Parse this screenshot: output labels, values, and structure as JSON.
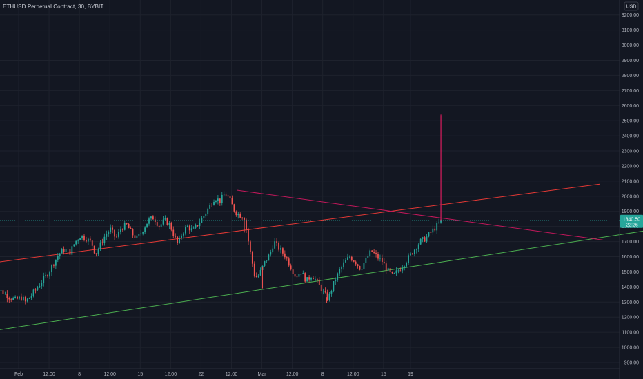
{
  "header": {
    "title": "ETHUSD Perpetual Contract, 30, BYBIT"
  },
  "price_scale": {
    "currency": "USD"
  },
  "last_price": {
    "value": "1840.50",
    "countdown": "22:26",
    "numeric": 1840.5
  },
  "colors": {
    "background": "#131722",
    "grid": "#1e222d",
    "up": "#26a69a",
    "down": "#ef5350",
    "trend_red": "#e53935",
    "trend_green": "#4caf50",
    "trend_pink": "#c2185b",
    "spike": "#e91e63"
  },
  "chart_data": {
    "type": "candlestick",
    "symbol": "ETHUSD Perpetual Contract",
    "interval": "30",
    "exchange": "BYBIT",
    "y_ticks": [
      900,
      1000,
      1100,
      1200,
      1300,
      1400,
      1500,
      1600,
      1700,
      1800,
      1900,
      2000,
      2100,
      2200,
      2300,
      2400,
      2500,
      2600,
      2700,
      2800,
      2900,
      3000,
      3100,
      3200
    ],
    "y_tick_labels": [
      "900.00",
      "1000.00",
      "1100.00",
      "1200.00",
      "1300.00",
      "1400.00",
      "1500.00",
      "1600.00",
      "1700.00",
      "1800.00",
      "1900.00",
      "2000.00",
      "2100.00",
      "2200.00",
      "2300.00",
      "2400.00",
      "2500.00",
      "2600.00",
      "2700.00",
      "2800.00",
      "2900.00",
      "3000.00",
      "3100.00",
      "3200.00"
    ],
    "ylim": [
      850,
      3260
    ],
    "x_tick_labels": [
      "Feb",
      "12:00",
      "8",
      "12:00",
      "15",
      "12:00",
      "22",
      "12:00",
      "Mar",
      "12:00",
      "8",
      "12:00",
      "15",
      "19"
    ],
    "x_tick_days": [
      1.0,
      5.5,
      10.0,
      14.5,
      19.0,
      23.5,
      28.0,
      32.5,
      37.0,
      41.5,
      46.0,
      50.5,
      55.0,
      59.0
    ],
    "xlim": [
      -2.8,
      90.0
    ],
    "price_path": [
      [
        -2.8,
        1390
      ],
      [
        -1.5,
        1370
      ],
      [
        -0.5,
        1335
      ],
      [
        0.5,
        1315
      ],
      [
        1.5,
        1330
      ],
      [
        2.0,
        1300
      ],
      [
        2.8,
        1340
      ],
      [
        3.5,
        1380
      ],
      [
        4.5,
        1440
      ],
      [
        5.5,
        1500
      ],
      [
        6.2,
        1560
      ],
      [
        7.0,
        1620
      ],
      [
        7.8,
        1650
      ],
      [
        8.6,
        1630
      ],
      [
        9.4,
        1700
      ],
      [
        10.2,
        1740
      ],
      [
        11.0,
        1720
      ],
      [
        11.8,
        1690
      ],
      [
        12.4,
        1615
      ],
      [
        13.0,
        1670
      ],
      [
        13.8,
        1740
      ],
      [
        14.6,
        1780
      ],
      [
        15.4,
        1720
      ],
      [
        16.2,
        1790
      ],
      [
        17.0,
        1810
      ],
      [
        17.8,
        1750
      ],
      [
        18.6,
        1720
      ],
      [
        19.4,
        1780
      ],
      [
        20.2,
        1840
      ],
      [
        21.0,
        1860
      ],
      [
        21.8,
        1800
      ],
      [
        22.6,
        1840
      ],
      [
        23.4,
        1810
      ],
      [
        24.0,
        1740
      ],
      [
        24.6,
        1680
      ],
      [
        25.2,
        1760
      ],
      [
        26.0,
        1800
      ],
      [
        26.8,
        1770
      ],
      [
        27.6,
        1820
      ],
      [
        28.4,
        1870
      ],
      [
        29.2,
        1930
      ],
      [
        30.0,
        1990
      ],
      [
        30.8,
        1970
      ],
      [
        31.6,
        2020
      ],
      [
        32.2,
        1980
      ],
      [
        33.0,
        1900
      ],
      [
        33.6,
        1880
      ],
      [
        34.4,
        1860
      ],
      [
        35.2,
        1650
      ],
      [
        36.0,
        1460
      ],
      [
        36.6,
        1480
      ],
      [
        37.4,
        1560
      ],
      [
        38.2,
        1620
      ],
      [
        38.8,
        1700
      ],
      [
        39.6,
        1650
      ],
      [
        40.4,
        1610
      ],
      [
        41.2,
        1540
      ],
      [
        42.0,
        1470
      ],
      [
        42.8,
        1500
      ],
      [
        43.6,
        1440
      ],
      [
        44.4,
        1480
      ],
      [
        45.2,
        1430
      ],
      [
        46.0,
        1370
      ],
      [
        46.8,
        1320
      ],
      [
        47.6,
        1420
      ],
      [
        48.4,
        1500
      ],
      [
        49.2,
        1560
      ],
      [
        50.0,
        1600
      ],
      [
        50.8,
        1570
      ],
      [
        51.6,
        1520
      ],
      [
        52.4,
        1580
      ],
      [
        53.2,
        1640
      ],
      [
        54.0,
        1600
      ],
      [
        54.8,
        1570
      ],
      [
        55.6,
        1510
      ],
      [
        56.4,
        1470
      ],
      [
        57.2,
        1510
      ],
      [
        58.0,
        1550
      ],
      [
        58.8,
        1600
      ],
      [
        59.6,
        1650
      ],
      [
        60.4,
        1700
      ],
      [
        61.2,
        1720
      ],
      [
        62.0,
        1760
      ],
      [
        62.8,
        1800
      ],
      [
        63.6,
        1840
      ]
    ],
    "wick_spikes": [
      {
        "day": 37.1,
        "low": 1390
      },
      {
        "day": 34.4,
        "low": 1760
      },
      {
        "day": 46.6,
        "low": 1295
      },
      {
        "day": 63.5,
        "high": 2530
      }
    ],
    "trendlines": [
      {
        "color": "trend_red",
        "from": [
          -2.8,
          1560
        ],
        "to": [
          87.0,
          2080
        ]
      },
      {
        "color": "trend_green",
        "from": [
          -2.8,
          1110
        ],
        "to": [
          95.0,
          1780
        ]
      },
      {
        "color": "trend_pink",
        "from": [
          33.3,
          2040
        ],
        "to": [
          87.5,
          1710
        ]
      }
    ],
    "spike_line": {
      "day": 63.5,
      "from": 1820,
      "to": 2540
    }
  }
}
